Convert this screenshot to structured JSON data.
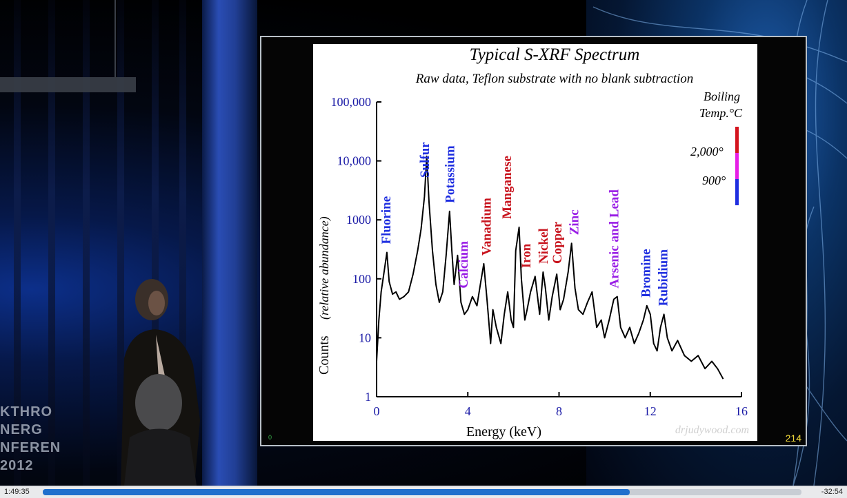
{
  "player": {
    "elapsed": "1:49:35",
    "remaining": "-32:54",
    "progress": 0.774,
    "accent_color": "#1f6fcd"
  },
  "venue": {
    "banner_lines": [
      "KTHRO",
      "NERG",
      "NFEREN",
      "2012"
    ]
  },
  "slide": {
    "number": "214",
    "corner_mark": "0",
    "title": "Typical S-XRF Spectrum",
    "subtitle": "Raw data, Teflon substrate with no blank subtraction",
    "watermark": "drjudywood.com",
    "legend": {
      "title_line1": "Boiling",
      "title_line2": "Temp.°C",
      "mark_high": "2,000°",
      "mark_low": "900°",
      "colors": [
        "#d4141e",
        "#e61ee6",
        "#1f2ee0"
      ]
    }
  },
  "chart_data": {
    "type": "line",
    "xlabel": "Energy (keV)",
    "ylabel": "Counts",
    "ylabel_note": "(relative abundance)",
    "yscale": "log",
    "xlim": [
      0,
      16
    ],
    "ylim": [
      1,
      100000
    ],
    "x_ticks": [
      "0",
      "4",
      "8",
      "12",
      "16"
    ],
    "y_ticks": [
      "100,000",
      "10,000",
      "1000",
      "100",
      "10",
      "1"
    ],
    "series": [
      {
        "x": [
          0,
          0.1,
          0.2,
          0.35,
          0.45,
          0.55,
          0.7,
          0.85,
          1.0,
          1.2,
          1.4,
          1.6,
          1.8,
          1.95,
          2.1,
          2.2,
          2.3,
          2.45,
          2.6,
          2.75,
          2.9,
          3.05,
          3.2,
          3.3,
          3.4,
          3.55,
          3.7,
          3.85,
          4.0,
          4.2,
          4.4,
          4.55,
          4.7,
          4.85,
          5.0,
          5.1,
          5.25,
          5.45,
          5.6,
          5.75,
          5.9,
          6.0,
          6.1,
          6.25,
          6.35,
          6.5,
          6.6,
          6.75,
          6.95,
          7.15,
          7.3,
          7.4,
          7.55,
          7.7,
          7.9,
          8.05,
          8.2,
          8.4,
          8.55,
          8.7,
          8.85,
          9.05,
          9.25,
          9.45,
          9.65,
          9.85,
          10.0,
          10.2,
          10.4,
          10.55,
          10.7,
          10.9,
          11.1,
          11.3,
          11.5,
          11.7,
          11.85,
          12.0,
          12.15,
          12.3,
          12.45,
          12.6,
          12.75,
          12.95,
          13.2,
          13.5,
          13.8,
          14.1,
          14.4,
          14.7,
          14.95,
          15.2
        ],
        "y": [
          4,
          20,
          60,
          150,
          280,
          90,
          55,
          60,
          45,
          50,
          60,
          120,
          300,
          700,
          2500,
          12000,
          2000,
          300,
          80,
          40,
          60,
          250,
          1400,
          300,
          80,
          250,
          40,
          25,
          30,
          50,
          35,
          80,
          180,
          40,
          8,
          30,
          15,
          8,
          25,
          60,
          20,
          15,
          300,
          750,
          100,
          20,
          30,
          60,
          110,
          25,
          130,
          70,
          20,
          50,
          120,
          30,
          45,
          130,
          400,
          70,
          30,
          25,
          40,
          60,
          15,
          20,
          10,
          20,
          45,
          50,
          15,
          10,
          15,
          8,
          12,
          20,
          35,
          25,
          8,
          6,
          15,
          25,
          10,
          6,
          9,
          5,
          4,
          5,
          3,
          4,
          3,
          2
        ]
      }
    ],
    "annotations": [
      {
        "text": "Fluorine",
        "x": 0.6,
        "color": "#1f2fe0"
      },
      {
        "text": "Sulfur",
        "x": 2.3,
        "color": "#1f2fe0"
      },
      {
        "text": "Potassium",
        "x": 3.4,
        "color": "#1f2fe0"
      },
      {
        "text": "Calcium",
        "x": 4.0,
        "color": "#9a1fe6"
      },
      {
        "text": "Vanadium",
        "x": 5.0,
        "color": "#c8141e"
      },
      {
        "text": "Manganese",
        "x": 5.9,
        "color": "#c8141e"
      },
      {
        "text": "Iron",
        "x": 6.75,
        "color": "#c8141e"
      },
      {
        "text": "Nickel",
        "x": 7.5,
        "color": "#c8141e"
      },
      {
        "text": "Copper",
        "x": 8.1,
        "color": "#c8141e"
      },
      {
        "text": "Zinc",
        "x": 8.85,
        "color": "#9a1fe6"
      },
      {
        "text": "Arsenic and Lead",
        "x": 10.6,
        "color": "#9a1fe6"
      },
      {
        "text": "Bromine",
        "x": 12.0,
        "color": "#1f2fe0"
      },
      {
        "text": "Rubidium",
        "x": 12.75,
        "color": "#1f2fe0"
      }
    ],
    "grid": false,
    "line_color": "#000000",
    "axis_color": "#000000",
    "tick_color": "#1a1aa6"
  }
}
